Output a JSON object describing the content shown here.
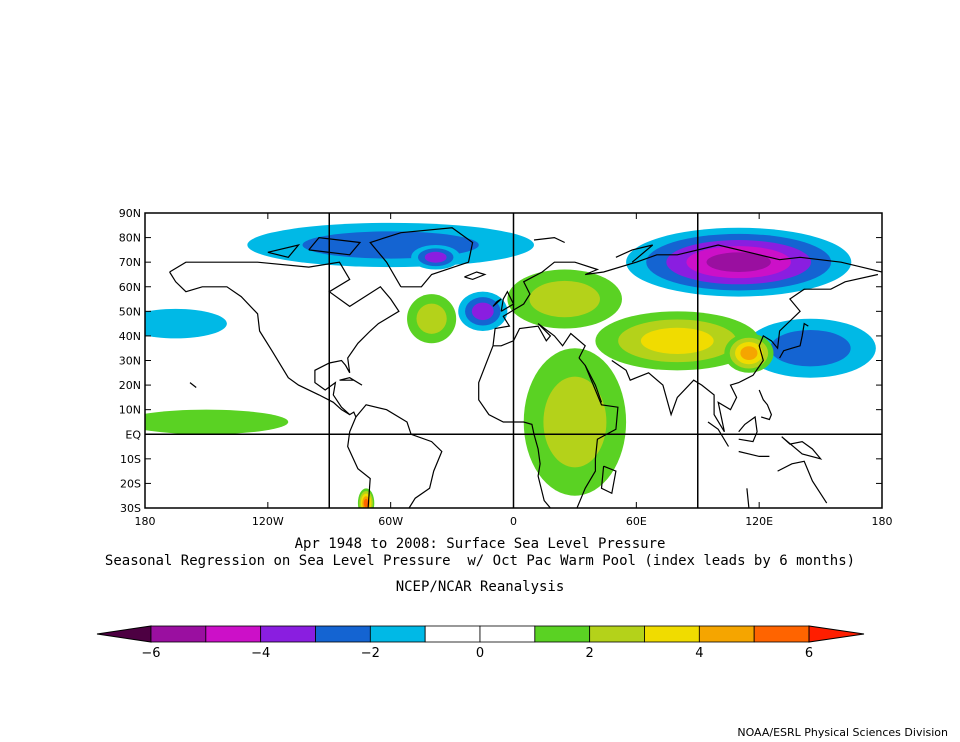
{
  "title": {
    "line1": "Apr 1948 to 2008: Surface Sea Level Pressure",
    "line2": "Seasonal Regression on Sea Level Pressure  w/ Oct Pac Warm Pool (index leads by 6 months)",
    "line3": "NCEP/NCAR Reanalysis"
  },
  "credit": "NOAA/ESRL Physical Sciences Division",
  "map": {
    "lat_labels": [
      "90N",
      "80N",
      "70N",
      "60N",
      "50N",
      "40N",
      "30N",
      "20N",
      "10N",
      "EQ",
      "10S",
      "20S",
      "30S"
    ],
    "lon_labels": [
      "180",
      "120W",
      "60W",
      "0",
      "60E",
      "120E",
      "180"
    ],
    "lat_range": [
      -30,
      90
    ],
    "lon_range": [
      -180,
      180
    ],
    "grid_lines": "every 90 degrees longitude, equator",
    "projection": "cylindrical equidistant"
  },
  "colorbar": {
    "tick_labels": [
      "−6",
      "−4",
      "−2",
      "0",
      "2",
      "4",
      "6"
    ],
    "tick_values": [
      -6,
      -4,
      -2,
      0,
      2,
      4,
      6
    ],
    "levels": [
      -6,
      -5,
      -4,
      -3,
      -2,
      -1,
      0,
      1,
      2,
      3,
      4,
      5,
      6
    ],
    "colors": [
      "#4d0042",
      "#9a0fa0",
      "#cc10c8",
      "#8a1ee0",
      "#1464d2",
      "#00b9e6",
      "#ffffff",
      "#ffffff",
      "#5ad223",
      "#b4d21a",
      "#f0dc00",
      "#f5a500",
      "#ff6400",
      "#ff1e00"
    ]
  },
  "regions": [
    {
      "name": "Siberia low",
      "lon": 110,
      "lat": 70,
      "rx": 55,
      "ry": 14,
      "level": -5
    },
    {
      "name": "Arctic low",
      "lon": -60,
      "lat": 77,
      "rx": 70,
      "ry": 9,
      "level": -2
    },
    {
      "name": "Greenland low",
      "lon": -38,
      "lat": 72,
      "rx": 12,
      "ry": 5,
      "level": -3
    },
    {
      "name": "N Atlantic low",
      "lon": -15,
      "lat": 50,
      "rx": 12,
      "ry": 8,
      "level": -3
    },
    {
      "name": "W Pacific low",
      "lon": 145,
      "lat": 35,
      "rx": 32,
      "ry": 12,
      "level": -2
    },
    {
      "name": "NE Pacific low",
      "lon": -165,
      "lat": 45,
      "rx": 25,
      "ry": 6,
      "level": -1
    },
    {
      "name": "Europe high",
      "lon": 25,
      "lat": 55,
      "rx": 28,
      "ry": 12,
      "level": 2
    },
    {
      "name": "Asia high",
      "lon": 80,
      "lat": 38,
      "rx": 40,
      "ry": 12,
      "level": 3
    },
    {
      "name": "China high",
      "lon": 115,
      "lat": 33,
      "rx": 12,
      "ry": 8,
      "level": 4
    },
    {
      "name": "Africa high",
      "lon": 30,
      "lat": 5,
      "rx": 25,
      "ry": 30,
      "level": 2
    },
    {
      "name": "Atlantic high",
      "lon": -40,
      "lat": 47,
      "rx": 12,
      "ry": 10,
      "level": 2
    },
    {
      "name": "Pacific high",
      "lon": -150,
      "lat": 5,
      "rx": 40,
      "ry": 5,
      "level": 1
    },
    {
      "name": "S America high",
      "lon": -72,
      "lat": -28,
      "rx": 4,
      "ry": 6,
      "level": 5
    }
  ]
}
